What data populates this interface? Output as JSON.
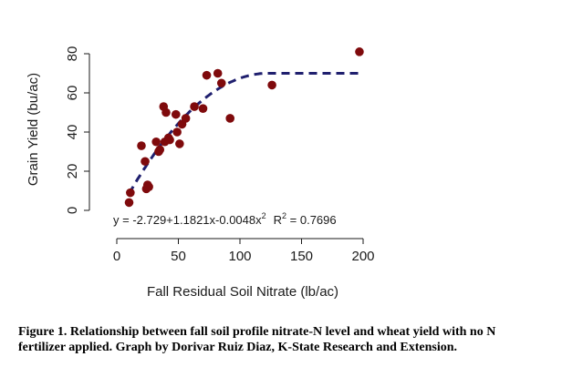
{
  "chart_data": {
    "type": "scatter",
    "xlabel": "Fall Residual Soil Nitrate (lb/ac)",
    "ylabel": "Grain Yield (bu/ac)",
    "xlim": [
      0,
      200
    ],
    "ylim": [
      0,
      80
    ],
    "xticks": [
      "0",
      "50",
      "100",
      "150",
      "200"
    ],
    "yticks": [
      "0",
      "20",
      "40",
      "60",
      "80"
    ],
    "grid": false,
    "points": [
      {
        "x": 10,
        "y": 4
      },
      {
        "x": 11,
        "y": 9
      },
      {
        "x": 20,
        "y": 33
      },
      {
        "x": 23,
        "y": 25
      },
      {
        "x": 24,
        "y": 11
      },
      {
        "x": 25,
        "y": 13
      },
      {
        "x": 26,
        "y": 12
      },
      {
        "x": 32,
        "y": 35
      },
      {
        "x": 34,
        "y": 30
      },
      {
        "x": 35,
        "y": 31
      },
      {
        "x": 38,
        "y": 53
      },
      {
        "x": 39,
        "y": 35
      },
      {
        "x": 40,
        "y": 50
      },
      {
        "x": 42,
        "y": 37
      },
      {
        "x": 43,
        "y": 36
      },
      {
        "x": 48,
        "y": 49
      },
      {
        "x": 49,
        "y": 40
      },
      {
        "x": 51,
        "y": 34
      },
      {
        "x": 53,
        "y": 44
      },
      {
        "x": 56,
        "y": 47
      },
      {
        "x": 63,
        "y": 53
      },
      {
        "x": 70,
        "y": 52
      },
      {
        "x": 73,
        "y": 69
      },
      {
        "x": 82,
        "y": 70
      },
      {
        "x": 85,
        "y": 65
      },
      {
        "x": 92,
        "y": 47
      },
      {
        "x": 126,
        "y": 64
      },
      {
        "x": 197,
        "y": 81
      }
    ],
    "fit": {
      "type": "quadratic-plateau",
      "intercept": -2.729,
      "b1": 1.1821,
      "b2": -0.0048,
      "plateau": 70,
      "x_start": 10,
      "x_end": 200
    },
    "equation_main": "y = -2.729+1.1821x-0.0048x",
    "equation_sup": "2",
    "r2_prefix": "R",
    "r2_sup": "2",
    "r2_value": " = 0.7696",
    "colors": {
      "points": "#7f0a0c",
      "fit_line": "#1f1f6e",
      "axis": "#1a1a1a"
    }
  },
  "caption": {
    "line1": "Figure 1. Relationship between fall soil profile nitrate-N level and wheat yield with no N",
    "line2": "fertilizer applied. Graph by Dorivar Ruiz Diaz, K-State Research and Extension."
  }
}
